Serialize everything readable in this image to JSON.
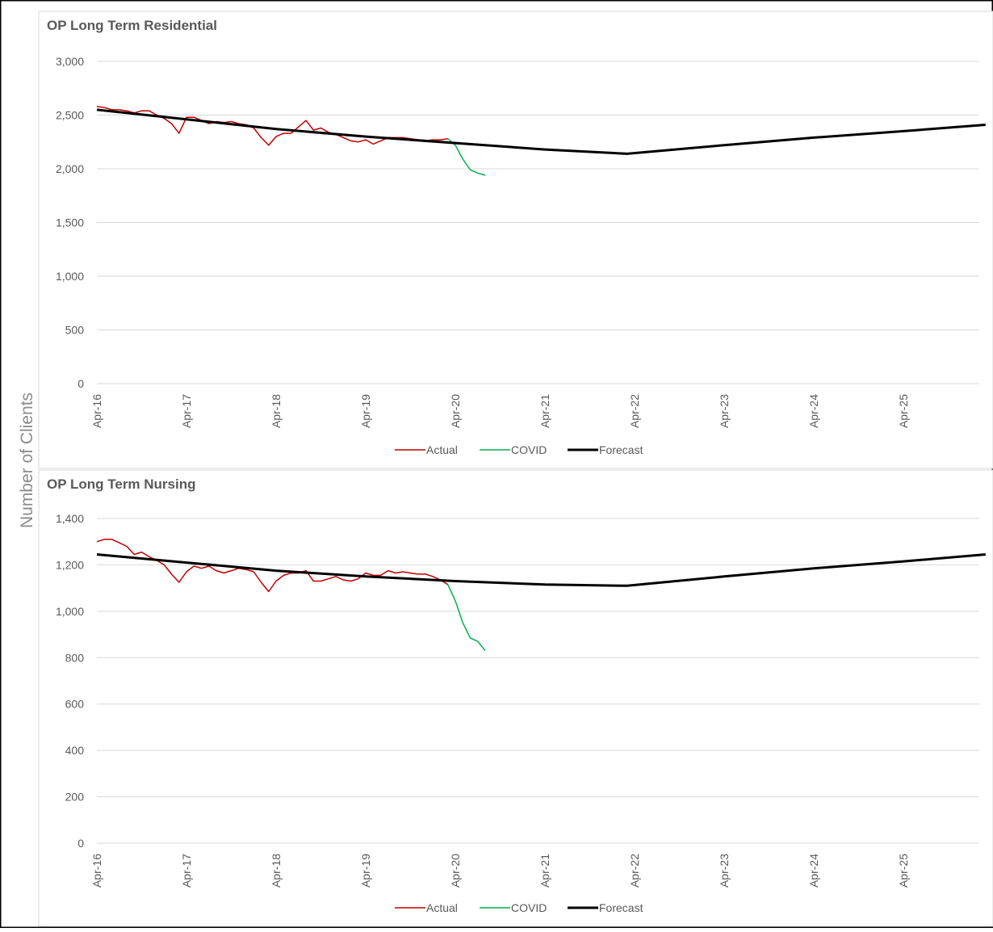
{
  "y_axis_title": "Number of Clients",
  "colors": {
    "actual": "#C00000",
    "covid": "#00B050",
    "forecast": "#000000",
    "grid": "#D9D9D9",
    "text": "#595959"
  },
  "chart_data": [
    {
      "type": "line",
      "title": "OP Long Term Residential",
      "xlabel": "",
      "ylabel": "Number of Clients",
      "x_ticks": [
        "Apr-16",
        "Apr-17",
        "Apr-18",
        "Apr-19",
        "Apr-20",
        "Apr-21",
        "Apr-22",
        "Apr-23",
        "Apr-24",
        "Apr-25"
      ],
      "y_ticks": [
        0,
        500,
        1000,
        1500,
        2000,
        2500,
        3000
      ],
      "y_tick_labels": [
        "0",
        "500",
        "1,000",
        "1,500",
        "2,000",
        "2,500",
        "3,000"
      ],
      "ylim": [
        0,
        3000
      ],
      "grid": true,
      "legend_position": "bottom",
      "series": [
        {
          "name": "Actual",
          "color": "#C00000",
          "points": [
            [
              "2016-04",
              2580
            ],
            [
              "2016-05",
              2570
            ],
            [
              "2016-06",
              2550
            ],
            [
              "2016-07",
              2550
            ],
            [
              "2016-08",
              2540
            ],
            [
              "2016-09",
              2520
            ],
            [
              "2016-10",
              2540
            ],
            [
              "2016-11",
              2540
            ],
            [
              "2016-12",
              2500
            ],
            [
              "2017-01",
              2470
            ],
            [
              "2017-02",
              2420
            ],
            [
              "2017-03",
              2330
            ],
            [
              "2017-04",
              2480
            ],
            [
              "2017-05",
              2480
            ],
            [
              "2017-06",
              2450
            ],
            [
              "2017-07",
              2420
            ],
            [
              "2017-08",
              2440
            ],
            [
              "2017-09",
              2430
            ],
            [
              "2017-10",
              2440
            ],
            [
              "2017-11",
              2420
            ],
            [
              "2017-12",
              2410
            ],
            [
              "2018-01",
              2380
            ],
            [
              "2018-02",
              2290
            ],
            [
              "2018-03",
              2220
            ],
            [
              "2018-04",
              2300
            ],
            [
              "2018-05",
              2330
            ],
            [
              "2018-06",
              2330
            ],
            [
              "2018-07",
              2390
            ],
            [
              "2018-08",
              2450
            ],
            [
              "2018-09",
              2360
            ],
            [
              "2018-10",
              2380
            ],
            [
              "2018-11",
              2340
            ],
            [
              "2018-12",
              2320
            ],
            [
              "2019-01",
              2290
            ],
            [
              "2019-02",
              2260
            ],
            [
              "2019-03",
              2250
            ],
            [
              "2019-04",
              2270
            ],
            [
              "2019-05",
              2230
            ],
            [
              "2019-06",
              2260
            ],
            [
              "2019-07",
              2290
            ],
            [
              "2019-08",
              2290
            ],
            [
              "2019-09",
              2290
            ],
            [
              "2019-10",
              2280
            ],
            [
              "2019-11",
              2270
            ],
            [
              "2019-12",
              2260
            ],
            [
              "2020-01",
              2270
            ],
            [
              "2020-02",
              2270
            ],
            [
              "2020-03",
              2280
            ]
          ]
        },
        {
          "name": "COVID",
          "color": "#00B050",
          "points": [
            [
              "2020-03",
              2280
            ],
            [
              "2020-04",
              2220
            ],
            [
              "2020-05",
              2090
            ],
            [
              "2020-06",
              1990
            ],
            [
              "2020-07",
              1960
            ],
            [
              "2020-08",
              1940
            ]
          ]
        },
        {
          "name": "Forecast",
          "color": "#000000",
          "points": [
            [
              "2016-04",
              2550
            ],
            [
              "2017-04",
              2460
            ],
            [
              "2018-04",
              2370
            ],
            [
              "2019-04",
              2300
            ],
            [
              "2020-04",
              2240
            ],
            [
              "2021-04",
              2180
            ],
            [
              "2022-03",
              2140
            ],
            [
              "2023-04",
              2220
            ],
            [
              "2024-04",
              2290
            ],
            [
              "2025-04",
              2350
            ],
            [
              "2026-03",
              2410
            ]
          ]
        }
      ]
    },
    {
      "type": "line",
      "title": "OP Long Term Nursing",
      "xlabel": "",
      "ylabel": "Number of Clients",
      "x_ticks": [
        "Apr-16",
        "Apr-17",
        "Apr-18",
        "Apr-19",
        "Apr-20",
        "Apr-21",
        "Apr-22",
        "Apr-23",
        "Apr-24",
        "Apr-25"
      ],
      "y_ticks": [
        0,
        200,
        400,
        600,
        800,
        1000,
        1200,
        1400
      ],
      "y_tick_labels": [
        "0",
        "200",
        "400",
        "600",
        "800",
        "1,000",
        "1,200",
        "1,400"
      ],
      "ylim": [
        0,
        1400
      ],
      "grid": true,
      "legend_position": "bottom",
      "series": [
        {
          "name": "Actual",
          "color": "#C00000",
          "points": [
            [
              "2016-04",
              1300
            ],
            [
              "2016-05",
              1310
            ],
            [
              "2016-06",
              1310
            ],
            [
              "2016-07",
              1295
            ],
            [
              "2016-08",
              1280
            ],
            [
              "2016-09",
              1245
            ],
            [
              "2016-10",
              1255
            ],
            [
              "2016-11",
              1235
            ],
            [
              "2016-12",
              1220
            ],
            [
              "2017-01",
              1200
            ],
            [
              "2017-02",
              1160
            ],
            [
              "2017-03",
              1125
            ],
            [
              "2017-04",
              1170
            ],
            [
              "2017-05",
              1195
            ],
            [
              "2017-06",
              1185
            ],
            [
              "2017-07",
              1195
            ],
            [
              "2017-08",
              1175
            ],
            [
              "2017-09",
              1165
            ],
            [
              "2017-10",
              1175
            ],
            [
              "2017-11",
              1185
            ],
            [
              "2017-12",
              1180
            ],
            [
              "2018-01",
              1170
            ],
            [
              "2018-02",
              1125
            ],
            [
              "2018-03",
              1085
            ],
            [
              "2018-04",
              1130
            ],
            [
              "2018-05",
              1155
            ],
            [
              "2018-06",
              1165
            ],
            [
              "2018-07",
              1165
            ],
            [
              "2018-08",
              1175
            ],
            [
              "2018-09",
              1130
            ],
            [
              "2018-10",
              1130
            ],
            [
              "2018-11",
              1140
            ],
            [
              "2018-12",
              1150
            ],
            [
              "2019-01",
              1135
            ],
            [
              "2019-02",
              1130
            ],
            [
              "2019-03",
              1140
            ],
            [
              "2019-04",
              1165
            ],
            [
              "2019-05",
              1155
            ],
            [
              "2019-06",
              1155
            ],
            [
              "2019-07",
              1175
            ],
            [
              "2019-08",
              1165
            ],
            [
              "2019-09",
              1170
            ],
            [
              "2019-10",
              1165
            ],
            [
              "2019-11",
              1160
            ],
            [
              "2019-12",
              1160
            ],
            [
              "2020-01",
              1150
            ],
            [
              "2020-02",
              1135
            ],
            [
              "2020-03",
              1115
            ]
          ]
        },
        {
          "name": "COVID",
          "color": "#00B050",
          "points": [
            [
              "2020-03",
              1115
            ],
            [
              "2020-04",
              1045
            ],
            [
              "2020-05",
              950
            ],
            [
              "2020-06",
              885
            ],
            [
              "2020-07",
              870
            ],
            [
              "2020-08",
              830
            ]
          ]
        },
        {
          "name": "Forecast",
          "color": "#000000",
          "points": [
            [
              "2016-04",
              1245
            ],
            [
              "2017-04",
              1210
            ],
            [
              "2018-04",
              1175
            ],
            [
              "2019-04",
              1150
            ],
            [
              "2020-04",
              1130
            ],
            [
              "2021-04",
              1115
            ],
            [
              "2022-03",
              1110
            ],
            [
              "2023-04",
              1150
            ],
            [
              "2024-04",
              1185
            ],
            [
              "2025-04",
              1215
            ],
            [
              "2026-03",
              1245
            ]
          ]
        }
      ]
    }
  ]
}
